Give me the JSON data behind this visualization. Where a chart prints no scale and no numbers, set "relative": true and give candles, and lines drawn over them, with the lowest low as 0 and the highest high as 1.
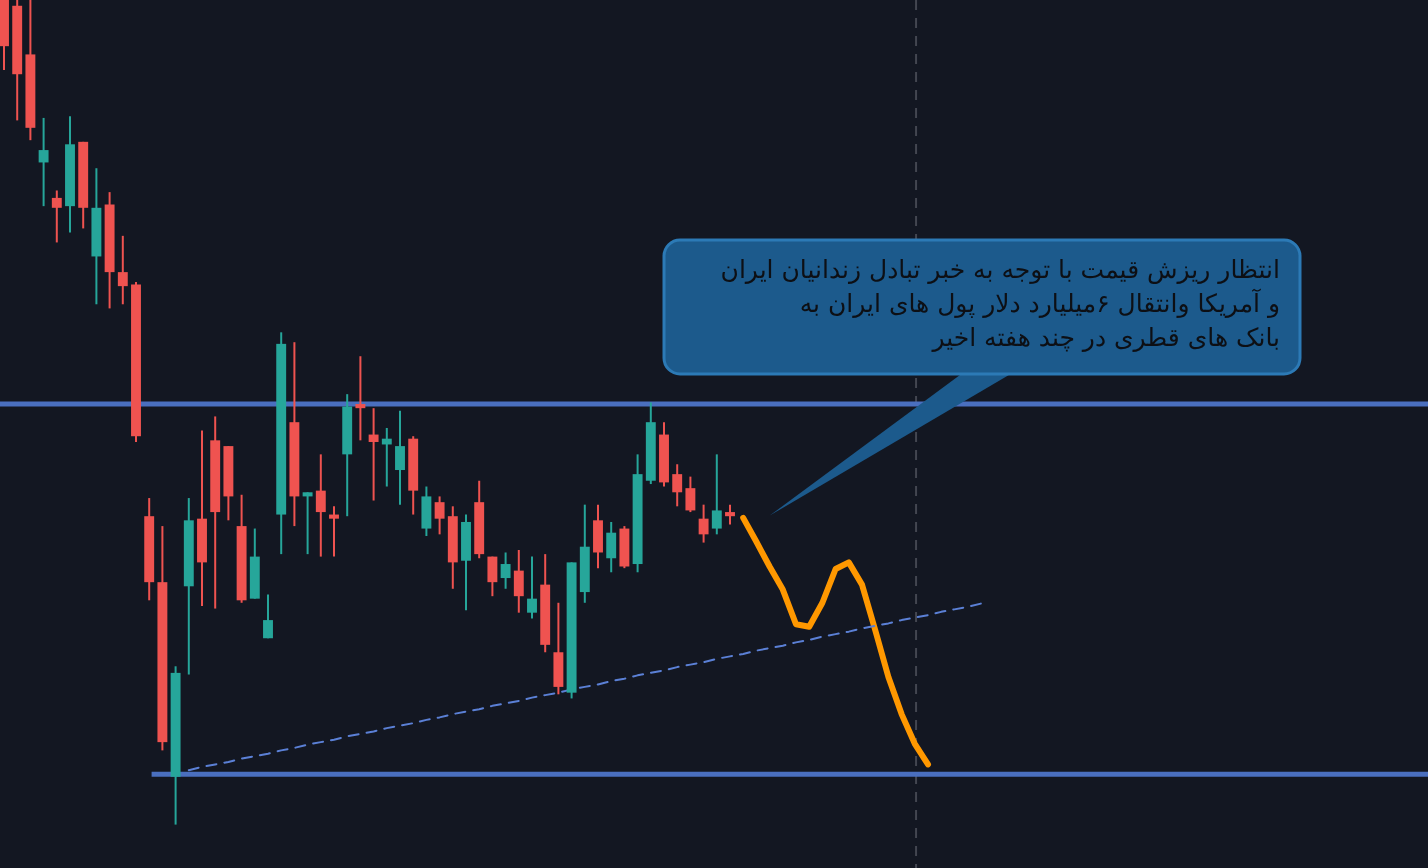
{
  "chart_data": {
    "type": "candlestick",
    "relative": true,
    "tick_labels": false,
    "grid": false,
    "categories": [
      null,
      null,
      null,
      null,
      null,
      null,
      null,
      null,
      null,
      null,
      null,
      null,
      null,
      null,
      null,
      null,
      null,
      null,
      null,
      null,
      null,
      null,
      null,
      null,
      null,
      null,
      null,
      null,
      null,
      null,
      null,
      null,
      null,
      null,
      null,
      null,
      null,
      null,
      null,
      null,
      null,
      null,
      null,
      null,
      null,
      null,
      null,
      null,
      null,
      null,
      null,
      null,
      null,
      null,
      null,
      null,
      null,
      null,
      null,
      null,
      null,
      null,
      null,
      null,
      null,
      null,
      null,
      null,
      null,
      null,
      null,
      null,
      null,
      null,
      null
    ],
    "ohlc": [
      [
        1.0,
        1.0,
        0.915,
        0.944
      ],
      [
        0.993,
        1.0,
        0.854,
        0.91
      ],
      [
        0.934,
        1.0,
        0.83,
        0.845
      ],
      [
        0.803,
        0.857,
        0.75,
        0.818
      ],
      [
        0.76,
        0.769,
        0.706,
        0.748
      ],
      [
        0.75,
        0.859,
        0.718,
        0.825
      ],
      [
        0.828,
        0.828,
        0.723,
        0.748
      ],
      [
        0.689,
        0.796,
        0.631,
        0.748
      ],
      [
        0.752,
        0.767,
        0.626,
        0.67
      ],
      [
        0.67,
        0.714,
        0.631,
        0.653
      ],
      [
        0.655,
        0.658,
        0.464,
        0.471
      ],
      [
        0.374,
        0.396,
        0.272,
        0.294
      ],
      [
        0.294,
        0.362,
        0.09,
        0.1
      ],
      [
        0.058,
        0.192,
        0.0,
        0.184
      ],
      [
        0.289,
        0.396,
        0.182,
        0.369
      ],
      [
        0.371,
        0.478,
        0.265,
        0.318
      ],
      [
        0.466,
        0.495,
        0.262,
        0.379
      ],
      [
        0.459,
        0.459,
        0.369,
        0.398
      ],
      [
        0.362,
        0.4,
        0.269,
        0.272
      ],
      [
        0.274,
        0.359,
        0.274,
        0.325
      ],
      [
        0.226,
        0.279,
        0.226,
        0.248
      ],
      [
        0.376,
        0.597,
        0.328,
        0.583
      ],
      [
        0.488,
        0.585,
        0.362,
        0.398
      ],
      [
        0.398,
        0.403,
        0.328,
        0.403
      ],
      [
        0.405,
        0.449,
        0.325,
        0.379
      ],
      [
        0.376,
        0.386,
        0.325,
        0.371
      ],
      [
        0.449,
        0.522,
        0.374,
        0.507
      ],
      [
        0.51,
        0.568,
        0.466,
        0.505
      ],
      [
        0.473,
        0.505,
        0.393,
        0.464
      ],
      [
        0.461,
        0.481,
        0.41,
        0.468
      ],
      [
        0.43,
        0.502,
        0.388,
        0.459
      ],
      [
        0.468,
        0.471,
        0.376,
        0.405
      ],
      [
        0.359,
        0.41,
        0.35,
        0.398
      ],
      [
        0.391,
        0.398,
        0.352,
        0.371
      ],
      [
        0.374,
        0.386,
        0.286,
        0.318
      ],
      [
        0.32,
        0.376,
        0.26,
        0.367
      ],
      [
        0.391,
        0.417,
        0.323,
        0.328
      ],
      [
        0.325,
        0.325,
        0.277,
        0.294
      ],
      [
        0.299,
        0.33,
        0.286,
        0.316
      ],
      [
        0.308,
        0.333,
        0.257,
        0.277
      ],
      [
        0.257,
        0.325,
        0.25,
        0.274
      ],
      [
        0.291,
        0.328,
        0.209,
        0.218
      ],
      [
        0.209,
        0.269,
        0.158,
        0.167
      ],
      [
        0.16,
        0.318,
        0.153,
        0.318
      ],
      [
        0.282,
        0.388,
        0.269,
        0.337
      ],
      [
        0.369,
        0.388,
        0.311,
        0.33
      ],
      [
        0.323,
        0.367,
        0.306,
        0.354
      ],
      [
        0.359,
        0.362,
        0.311,
        0.313
      ],
      [
        0.316,
        0.449,
        0.306,
        0.425
      ],
      [
        0.417,
        0.512,
        0.413,
        0.488
      ],
      [
        0.473,
        0.488,
        0.41,
        0.415
      ],
      [
        0.425,
        0.437,
        0.386,
        0.403
      ],
      [
        0.408,
        0.422,
        0.379,
        0.381
      ],
      [
        0.371,
        0.388,
        0.342,
        0.352
      ],
      [
        0.359,
        0.449,
        0.352,
        0.381
      ],
      [
        0.379,
        0.388,
        0.364,
        0.374
      ],
      null,
      null,
      null,
      null,
      null,
      null,
      null,
      null,
      null,
      null,
      null,
      null,
      null,
      null,
      null,
      null,
      null,
      null,
      null
    ],
    "colors": [
      "#ef5350",
      "#ef5350",
      "#ef5350",
      "#26a69a",
      "#ef5350",
      "#26a69a",
      "#ef5350",
      "#26a69a",
      "#ef5350",
      "#ef5350",
      "#ef5350",
      "#ef5350",
      "#ef5350",
      "#26a69a",
      "#26a69a",
      "#ef5350",
      "#ef5350",
      "#ef5350",
      "#ef5350",
      "#26a69a",
      "#26a69a",
      "#26a69a",
      "#ef5350",
      "#26a69a",
      "#ef5350",
      "#ef5350",
      "#26a69a",
      "#ef5350",
      "#ef5350",
      "#26a69a",
      "#26a69a",
      "#ef5350",
      "#26a69a",
      "#ef5350",
      "#ef5350",
      "#26a69a",
      "#ef5350",
      "#ef5350",
      "#26a69a",
      "#ef5350",
      "#26a69a",
      "#ef5350",
      "#ef5350",
      "#26a69a",
      "#26a69a",
      "#ef5350",
      "#26a69a",
      "#ef5350",
      "#26a69a",
      "#26a69a",
      "#ef5350",
      "#ef5350",
      "#ef5350",
      "#ef5350",
      "#26a69a",
      "#ef5350",
      null,
      null,
      null,
      null,
      null,
      null,
      null,
      null,
      null,
      null,
      null,
      null,
      null,
      null,
      null,
      null,
      null,
      null,
      null
    ],
    "series": [
      {
        "type": "line",
        "color": "#ff9800",
        "line_style": "solid",
        "values": [
          null,
          null,
          null,
          null,
          null,
          null,
          null,
          null,
          null,
          null,
          null,
          null,
          null,
          null,
          null,
          null,
          null,
          null,
          null,
          null,
          null,
          null,
          null,
          null,
          null,
          null,
          null,
          null,
          null,
          null,
          null,
          null,
          null,
          null,
          null,
          null,
          null,
          null,
          null,
          null,
          null,
          null,
          null,
          null,
          null,
          null,
          null,
          null,
          null,
          null,
          null,
          null,
          null,
          null,
          null,
          null,
          0.372,
          0.343,
          0.313,
          0.285,
          0.243,
          0.24,
          0.269,
          0.31,
          0.318,
          0.291,
          0.236,
          0.179,
          0.134,
          0.098,
          0.073,
          null,
          null,
          null,
          null
        ]
      },
      {
        "type": "line",
        "color": "#5b80d6",
        "line_style": "dashed",
        "values": [
          null,
          null,
          null,
          null,
          null,
          null,
          null,
          null,
          null,
          null,
          null,
          null,
          null,
          null,
          0.066,
          0.07,
          0.073,
          0.076,
          0.08,
          0.083,
          0.086,
          0.09,
          0.093,
          0.097,
          0.1,
          0.103,
          0.107,
          0.11,
          0.113,
          0.117,
          0.12,
          0.123,
          0.127,
          0.13,
          0.134,
          0.137,
          0.14,
          0.144,
          0.147,
          0.15,
          0.154,
          0.157,
          0.16,
          0.164,
          0.167,
          0.17,
          0.174,
          0.177,
          0.181,
          0.184,
          0.187,
          0.191,
          0.194,
          0.197,
          0.201,
          0.204,
          0.207,
          0.211,
          0.214,
          0.217,
          0.221,
          0.224,
          0.228,
          0.231,
          0.234,
          0.238,
          0.241,
          0.244,
          0.248,
          0.251,
          0.254,
          0.258,
          0.261,
          0.264,
          0.268
        ]
      }
    ],
    "ref_lines": [
      {
        "axis": "y",
        "value": 0.51,
        "color": "#4a6fbf",
        "line_style": "solid"
      },
      {
        "axis": "y",
        "value": 0.061,
        "color": "#4a6fbf",
        "line_style": "solid"
      }
    ],
    "annotations": [
      "انتظار ریزش قیمت با توجه به خبر تبادل زندانیان ایران\nو آمریکا وانتقال ۶میلیارد دلار پول های ایران به\nبانک های قطری در چند هفته اخیر"
    ]
  }
}
